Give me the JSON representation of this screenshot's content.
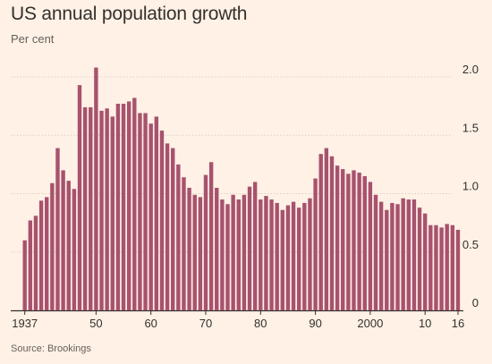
{
  "chart_data": {
    "type": "bar",
    "title": "US annual population growth",
    "subtitle": "Per cent",
    "source": "Source: Brookings",
    "ylim": [
      0,
      2.0
    ],
    "yticks": [
      0,
      0.5,
      1.0,
      1.5,
      2.0
    ],
    "ytick_labels": [
      "0",
      "0.5",
      "1.0",
      "1.5",
      "2.0"
    ],
    "xtick_years": [
      1937,
      1950,
      1960,
      1970,
      1980,
      1990,
      2000,
      2010,
      2016
    ],
    "xtick_labels": [
      "1937",
      "50",
      "60",
      "70",
      "80",
      "90",
      "2000",
      "10",
      "16"
    ],
    "grid": "horizontal",
    "colors": {
      "bar": "#a7526e",
      "background": "#fff1e5",
      "grid": "#dcd1c8",
      "baseline": "#33302e"
    },
    "years": [
      1937,
      1938,
      1939,
      1940,
      1941,
      1942,
      1943,
      1944,
      1945,
      1946,
      1947,
      1948,
      1949,
      1950,
      1951,
      1952,
      1953,
      1954,
      1955,
      1956,
      1957,
      1958,
      1959,
      1960,
      1961,
      1962,
      1963,
      1964,
      1965,
      1966,
      1967,
      1968,
      1969,
      1970,
      1971,
      1972,
      1973,
      1974,
      1975,
      1976,
      1977,
      1978,
      1979,
      1980,
      1981,
      1982,
      1983,
      1984,
      1985,
      1986,
      1987,
      1988,
      1989,
      1990,
      1991,
      1992,
      1993,
      1994,
      1995,
      1996,
      1997,
      1998,
      1999,
      2000,
      2001,
      2002,
      2003,
      2004,
      2005,
      2006,
      2007,
      2008,
      2009,
      2010,
      2011,
      2012,
      2013,
      2014,
      2015,
      2016
    ],
    "values": [
      0.6,
      0.77,
      0.81,
      0.94,
      0.97,
      1.09,
      1.39,
      1.2,
      1.11,
      1.04,
      1.93,
      1.74,
      1.74,
      2.08,
      1.71,
      1.73,
      1.66,
      1.77,
      1.77,
      1.79,
      1.82,
      1.69,
      1.69,
      1.6,
      1.66,
      1.54,
      1.43,
      1.39,
      1.25,
      1.14,
      1.05,
      0.99,
      0.97,
      1.16,
      1.27,
      1.05,
      0.95,
      0.91,
      0.99,
      0.95,
      0.99,
      1.06,
      1.1,
      0.95,
      0.98,
      0.95,
      0.92,
      0.86,
      0.9,
      0.93,
      0.88,
      0.92,
      0.96,
      1.13,
      1.34,
      1.39,
      1.32,
      1.24,
      1.21,
      1.17,
      1.2,
      1.18,
      1.15,
      1.1,
      0.99,
      0.93,
      0.86,
      0.92,
      0.91,
      0.96,
      0.95,
      0.95,
      0.88,
      0.83,
      0.73,
      0.73,
      0.71,
      0.74,
      0.73,
      0.69
    ]
  }
}
